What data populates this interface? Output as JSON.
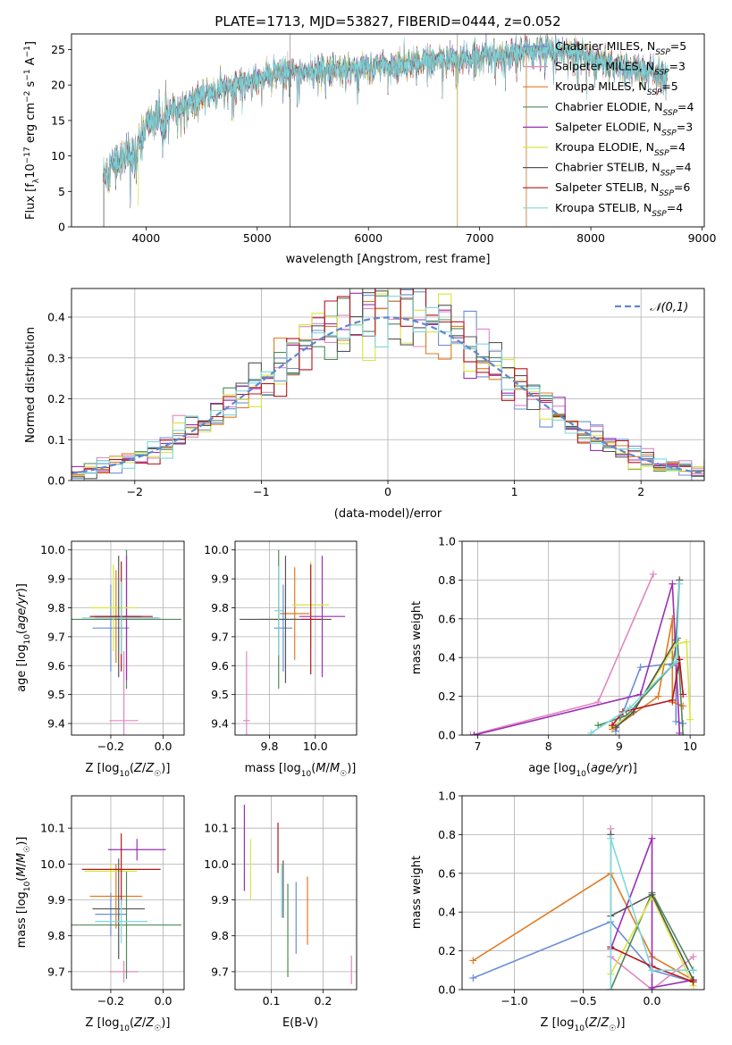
{
  "title": "PLATE=1713, MJD=53827, FIBERID=0444, z=0.052",
  "models": [
    {
      "name": "Chabrier MILES",
      "nssp": "5",
      "color": "#6b8fd6"
    },
    {
      "name": "Salpeter MILES",
      "nssp": "3",
      "color": "#e386c2"
    },
    {
      "name": "Kroupa MILES",
      "nssp": "5",
      "color": "#e07b22"
    },
    {
      "name": "Chabrier ELODIE",
      "nssp": "4",
      "color": "#4f8a5a"
    },
    {
      "name": "Salpeter ELODIE",
      "nssp": "3",
      "color": "#9b2fb5"
    },
    {
      "name": "Kroupa ELODIE",
      "nssp": "4",
      "color": "#d8e63c"
    },
    {
      "name": "Chabrier STELIB",
      "nssp": "4",
      "color": "#555555"
    },
    {
      "name": "Salpeter STELIB",
      "nssp": "6",
      "color": "#b5161c"
    },
    {
      "name": "Kroupa STELIB",
      "nssp": "4",
      "color": "#7dd8dc"
    }
  ],
  "chart_data": [
    {
      "id": "spectrum",
      "type": "line",
      "xlabel": "wavelength [Angstrom, rest frame]",
      "ylabel": "Flux [f_λ10^-17 erg cm^-2 s^-1 A^-1]",
      "xlim": [
        3330,
        9020
      ],
      "ylim": [
        0,
        27.2
      ],
      "xticks": [
        4000,
        5000,
        6000,
        7000,
        8000,
        9000
      ],
      "yticks": [
        0,
        5,
        10,
        15,
        20,
        25
      ],
      "continuum": {
        "x": [
          3610,
          3700,
          3850,
          3930,
          4000,
          4150,
          4300,
          4500,
          4800,
          5000,
          5300,
          5500,
          5800,
          6000,
          6300,
          6500,
          6700,
          7000,
          7300,
          7500,
          7600,
          7800,
          8000,
          8300,
          8600,
          8700
        ],
        "y": [
          7.2,
          9.0,
          10.0,
          11.0,
          14.5,
          15.5,
          16.8,
          18.5,
          20.0,
          21.0,
          21.8,
          22.0,
          22.5,
          22.5,
          22.9,
          23.2,
          23.5,
          24.0,
          24.6,
          24.9,
          25.1,
          24.6,
          23.4,
          22.5,
          21.8,
          21.5
        ]
      }
    },
    {
      "id": "residuals",
      "type": "histogram",
      "xlabel": "(data-model)/error",
      "ylabel": "Normed distribution",
      "xlim": [
        -2.5,
        2.5
      ],
      "ylim": [
        0,
        0.47
      ],
      "xticks": [
        -2,
        -1,
        0,
        1,
        2
      ],
      "yticks": [
        0.0,
        0.1,
        0.2,
        0.3,
        0.4
      ],
      "reference": "𝒩(0,1)",
      "bin_width": 0.1
    },
    {
      "id": "z-age",
      "type": "scatter",
      "xlabel": "Z [log10(Z/Z☉)]",
      "ylabel": "age  [log10(age/yr)]",
      "xlim": [
        -0.35,
        0.08
      ],
      "ylim": [
        9.36,
        10.03
      ],
      "xticks": [
        -0.2,
        0.0
      ],
      "yticks": [
        9.4,
        9.5,
        9.6,
        9.7,
        9.8,
        9.9,
        10.0
      ],
      "points": [
        [
          -0.2,
          9.73,
          0.07,
          0.15
        ],
        [
          -0.15,
          9.41,
          0.055,
          0.24
        ],
        [
          -0.18,
          9.77,
          0.09,
          0.16
        ],
        [
          -0.14,
          9.76,
          0.21,
          0.24
        ],
        [
          -0.14,
          9.765,
          0.12,
          0.215
        ],
        [
          -0.19,
          9.8,
          0.09,
          0.15
        ],
        [
          -0.17,
          9.77,
          0.09,
          0.21
        ],
        [
          -0.16,
          9.77,
          0.12,
          0.19
        ],
        [
          -0.16,
          9.765,
          0.15,
          0.125
        ]
      ]
    },
    {
      "id": "mass-age",
      "type": "scatter",
      "xlabel": "mass [log10(M/M☉)]",
      "ylabel": "",
      "xlim": [
        9.65,
        10.18
      ],
      "ylim": [
        9.36,
        10.03
      ],
      "xticks": [
        9.8,
        10.0
      ],
      "yticks": [
        9.4,
        9.5,
        9.6,
        9.7,
        9.8,
        9.9,
        10.0
      ],
      "points": [
        [
          9.86,
          9.73,
          0.04,
          0.15
        ],
        [
          9.7,
          9.41,
          0.015,
          0.24
        ],
        [
          9.91,
          9.78,
          0.065,
          0.16
        ],
        [
          9.84,
          9.76,
          0.085,
          0.24
        ],
        [
          10.03,
          9.77,
          0.1,
          0.21
        ],
        [
          9.98,
          9.81,
          0.08,
          0.15
        ],
        [
          9.87,
          9.76,
          0.2,
          0.22
        ],
        [
          9.98,
          9.76,
          0.045,
          0.19
        ],
        [
          9.84,
          9.79,
          0.018,
          0.155
        ]
      ]
    },
    {
      "id": "age-weight",
      "type": "line",
      "xlabel": "age  [log10(age/yr)]",
      "ylabel": "mass weight",
      "xlim": [
        6.78,
        10.2
      ],
      "ylim": [
        0,
        1
      ],
      "xticks": [
        7,
        8,
        9,
        10
      ],
      "yticks": [
        0.0,
        0.2,
        0.4,
        0.6,
        0.8,
        1.0
      ],
      "series": [
        {
          "model": 0,
          "x": [
            8.95,
            9.3,
            9.8,
            9.8,
            9.9
          ],
          "y": [
            0.02,
            0.35,
            0.37,
            0.07,
            0.06
          ]
        },
        {
          "model": 1,
          "x": [
            6.9,
            8.7,
            9.48
          ],
          "y": [
            0.0,
            0.17,
            0.83
          ]
        },
        {
          "model": 2,
          "x": [
            8.9,
            9.55,
            9.75,
            9.75,
            9.9
          ],
          "y": [
            0.03,
            0.2,
            0.6,
            0.17,
            0.15
          ]
        },
        {
          "model": 3,
          "x": [
            8.7,
            9.1,
            9.75,
            9.82,
            9.9
          ],
          "y": [
            0.05,
            0.1,
            0.36,
            0.5,
            0.0
          ]
        },
        {
          "model": 4,
          "x": [
            6.95,
            9.3,
            9.75,
            9.85
          ],
          "y": [
            0.0,
            0.21,
            0.78,
            0.01
          ]
        },
        {
          "model": 5,
          "x": [
            8.9,
            9.2,
            9.8,
            9.95,
            10.0
          ],
          "y": [
            0.04,
            0.12,
            0.47,
            0.48,
            0.08
          ]
        },
        {
          "model": 6,
          "x": [
            8.95,
            9.2,
            9.8,
            9.85
          ],
          "y": [
            0.04,
            0.12,
            0.49,
            0.8
          ]
        },
        {
          "model": 7,
          "x": [
            8.9,
            9.05,
            9.75,
            9.85,
            9.9
          ],
          "y": [
            0.05,
            0.12,
            0.18,
            0.39,
            0.21
          ]
        },
        {
          "model": 8,
          "x": [
            8.6,
            9.15,
            9.8,
            9.85
          ],
          "y": [
            0.01,
            0.14,
            0.38,
            0.78
          ]
        }
      ]
    },
    {
      "id": "z-mass",
      "type": "scatter",
      "xlabel": "Z [log10(Z/Z☉)]",
      "ylabel": "mass [log10(M/M☉)]",
      "xlim": [
        -0.35,
        0.08
      ],
      "ylim": [
        9.65,
        10.19
      ],
      "xticks": [
        -0.2,
        0.0
      ],
      "yticks": [
        9.7,
        9.8,
        9.9,
        10.0,
        10.1
      ],
      "points": [
        [
          -0.2,
          9.86,
          0.06,
          0.06
        ],
        [
          -0.15,
          9.7,
          0.055,
          0.03
        ],
        [
          -0.18,
          9.91,
          0.1,
          0.09
        ],
        [
          -0.14,
          9.83,
          0.21,
          0.15
        ],
        [
          -0.1,
          10.04,
          0.11,
          0.03
        ],
        [
          -0.2,
          9.98,
          0.1,
          0.02
        ],
        [
          -0.17,
          9.875,
          0.1,
          0.14
        ],
        [
          -0.16,
          9.985,
          0.15,
          0.1
        ],
        [
          -0.16,
          9.84,
          0.1,
          0.06
        ]
      ]
    },
    {
      "id": "ebv-mass",
      "type": "scatter",
      "xlabel": "E(B-V)",
      "ylabel": "",
      "xlim": [
        0.03,
        0.265
      ],
      "ylim": [
        9.65,
        10.19
      ],
      "xticks": [
        0.1,
        0.2
      ],
      "yticks": [
        9.7,
        9.8,
        9.9,
        10.0,
        10.1
      ],
      "points": [
        [
          0.148,
          9.85,
          0,
          0.1
        ],
        [
          0.255,
          9.705,
          0,
          0.04
        ],
        [
          0.17,
          9.87,
          0,
          0.095
        ],
        [
          0.132,
          9.815,
          0,
          0.13
        ],
        [
          0.048,
          10.045,
          0,
          0.12
        ],
        [
          0.06,
          9.985,
          0,
          0.085
        ],
        [
          0.123,
          9.93,
          0,
          0.08
        ],
        [
          0.113,
          10.045,
          0,
          0.07
        ],
        [
          0.12,
          9.925,
          0,
          0.075
        ]
      ]
    },
    {
      "id": "z-weight",
      "type": "line",
      "xlabel": "Z [log10(Z/Z☉)]",
      "ylabel": "mass weight",
      "xlim": [
        -1.38,
        0.38
      ],
      "ylim": [
        0,
        1
      ],
      "xticks": [
        -1.0,
        -0.5,
        0.0
      ],
      "yticks": [
        0.0,
        0.2,
        0.4,
        0.6,
        0.8,
        1.0
      ],
      "series": [
        {
          "model": 0,
          "x": [
            -1.3,
            -0.3,
            0.0,
            0.3
          ],
          "y": [
            0.06,
            0.35,
            0.1,
            0.04
          ]
        },
        {
          "model": 1,
          "x": [
            -0.3,
            -0.3,
            0.0,
            0.3
          ],
          "y": [
            0.83,
            0.17,
            0.0,
            0.17
          ]
        },
        {
          "model": 2,
          "x": [
            -1.3,
            -0.3,
            0.0,
            0.3
          ],
          "y": [
            0.15,
            0.6,
            0.17,
            0.05
          ]
        },
        {
          "model": 3,
          "x": [
            -0.3,
            0.0,
            0.3
          ],
          "y": [
            0.0,
            0.5,
            0.1
          ]
        },
        {
          "model": 4,
          "x": [
            -0.3,
            0.0,
            0.0,
            0.3
          ],
          "y": [
            0.21,
            0.78,
            0.01,
            0.05
          ]
        },
        {
          "model": 5,
          "x": [
            -0.3,
            0.0,
            0.3
          ],
          "y": [
            0.08,
            0.48,
            0.02
          ]
        },
        {
          "model": 6,
          "x": [
            -0.3,
            -0.3,
            0.0,
            0.3
          ],
          "y": [
            0.8,
            0.38,
            0.49,
            0.05
          ]
        },
        {
          "model": 7,
          "x": [
            -0.3,
            0.0,
            0.3
          ],
          "y": [
            0.22,
            0.12,
            0.04
          ]
        },
        {
          "model": 8,
          "x": [
            -0.3,
            -0.3,
            0.0,
            0.3
          ],
          "y": [
            0.0,
            0.78,
            0.1,
            0.1
          ]
        }
      ]
    }
  ]
}
